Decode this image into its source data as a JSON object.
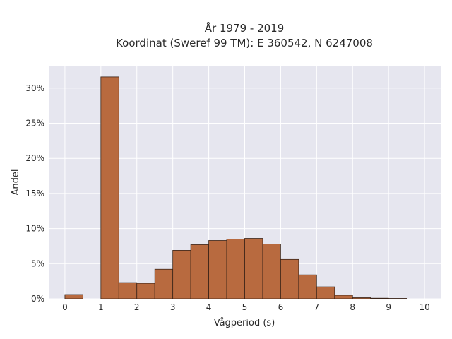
{
  "chart_data": {
    "type": "bar",
    "title": [
      "År 1979 - 2019",
      "Koordinat (Sweref 99 TM): E 360542, N 6247008"
    ],
    "xlabel": "Vågperiod (s)",
    "ylabel": "Andel",
    "xlim": [
      -0.45,
      10.45
    ],
    "ylim": [
      0,
      33.2
    ],
    "xticks": [
      0,
      1,
      2,
      3,
      4,
      5,
      6,
      7,
      8,
      9,
      10
    ],
    "xtick_labels": [
      "0",
      "1",
      "2",
      "3",
      "4",
      "5",
      "6",
      "7",
      "8",
      "9",
      "10"
    ],
    "yticks": [
      0,
      5,
      10,
      15,
      20,
      25,
      30
    ],
    "ytick_labels": [
      "0%",
      "5%",
      "10%",
      "15%",
      "20%",
      "25%",
      "30%"
    ],
    "bin_width": 0.5,
    "bins": [
      {
        "start": 0.0,
        "value": 0.6
      },
      {
        "start": 0.5,
        "value": 0
      },
      {
        "start": 1.0,
        "value": 31.6
      },
      {
        "start": 1.5,
        "value": 2.3
      },
      {
        "start": 2.0,
        "value": 2.2
      },
      {
        "start": 2.5,
        "value": 4.2
      },
      {
        "start": 3.0,
        "value": 6.9
      },
      {
        "start": 3.5,
        "value": 7.7
      },
      {
        "start": 4.0,
        "value": 8.3
      },
      {
        "start": 4.5,
        "value": 8.5
      },
      {
        "start": 5.0,
        "value": 8.6
      },
      {
        "start": 5.5,
        "value": 7.8
      },
      {
        "start": 6.0,
        "value": 5.6
      },
      {
        "start": 6.5,
        "value": 3.4
      },
      {
        "start": 7.0,
        "value": 1.7
      },
      {
        "start": 7.5,
        "value": 0.5
      },
      {
        "start": 8.0,
        "value": 0.15
      },
      {
        "start": 8.5,
        "value": 0.08
      },
      {
        "start": 9.0,
        "value": 0.05
      }
    ],
    "grid": true,
    "colors": {
      "bar_fill": "#b86a3f",
      "bar_edge": "#3a2418",
      "plot_bg": "#e6e6ef",
      "grid": "#ffffff"
    }
  }
}
